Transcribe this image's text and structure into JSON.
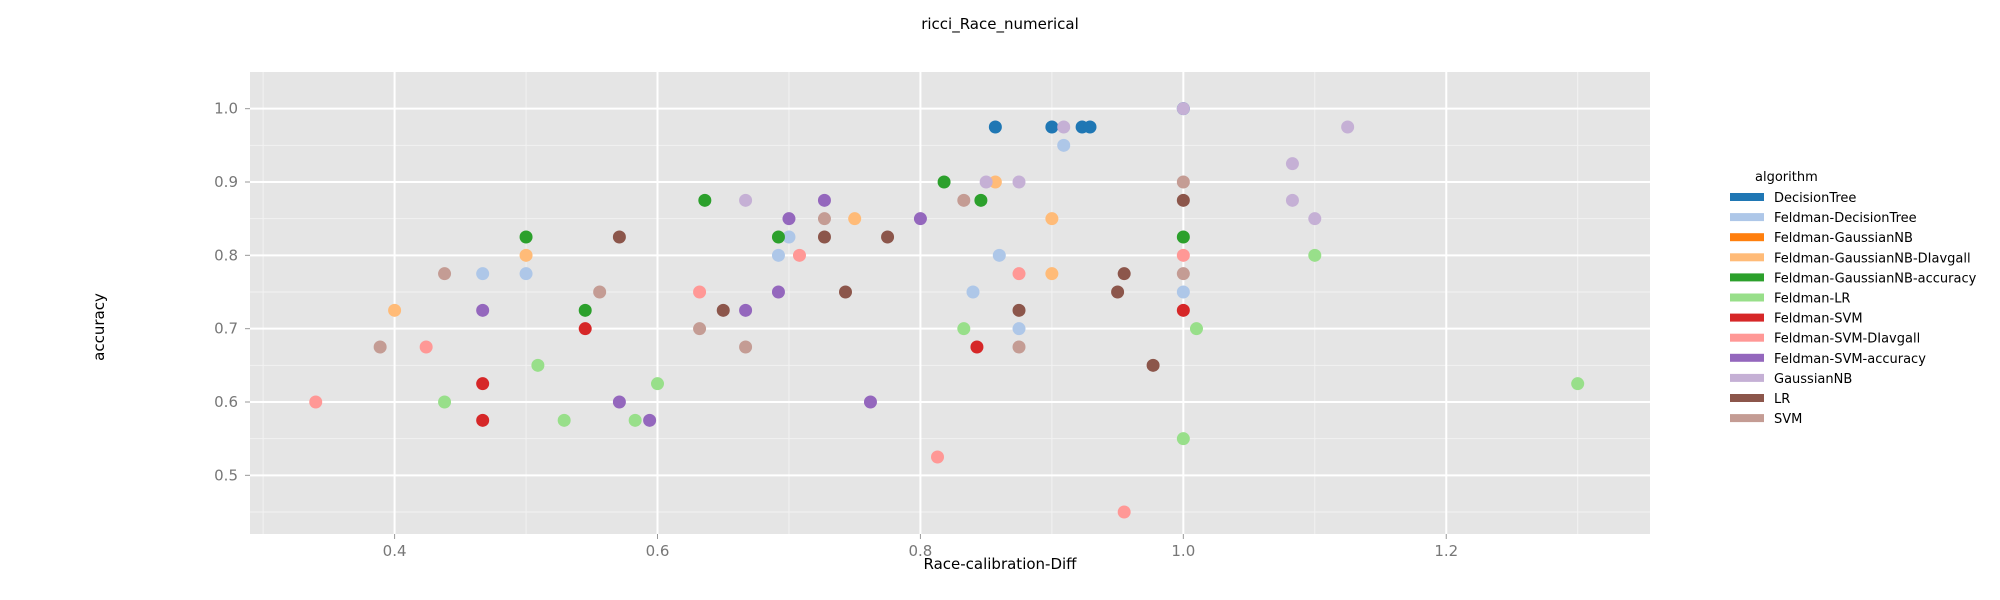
{
  "chart_data": {
    "type": "scatter",
    "title": "ricci_Race_numerical",
    "xlabel": "Race-calibration-Diff",
    "ylabel": "accuracy",
    "xlim": [
      0.29,
      1.355
    ],
    "ylim": [
      0.42,
      1.05
    ],
    "xticks": [
      0.4,
      0.6,
      0.8,
      1.0,
      1.2
    ],
    "xtick_labels": [
      "0.4",
      "0.6",
      "0.8",
      "1.0",
      "1.2"
    ],
    "yticks": [
      0.5,
      0.6,
      0.7,
      0.8,
      0.9,
      1.0
    ],
    "ytick_labels": [
      "0.5",
      "0.6",
      "0.7",
      "0.8",
      "0.9",
      "1.0"
    ],
    "grid": true,
    "legend_title": "algorithm",
    "legend_position": "right",
    "series": [
      {
        "name": "DecisionTree",
        "color": "#1f77b4",
        "points": [
          [
            0.857,
            0.975
          ],
          [
            0.9,
            0.975
          ],
          [
            0.923,
            0.975
          ],
          [
            0.929,
            0.975
          ],
          [
            1.0,
            1.0
          ]
        ]
      },
      {
        "name": "Feldman-DecisionTree",
        "color": "#aec7e8",
        "points": [
          [
            0.467,
            0.775
          ],
          [
            0.5,
            0.775
          ],
          [
            0.7,
            0.825
          ],
          [
            0.692,
            0.8
          ],
          [
            0.86,
            0.8
          ],
          [
            0.84,
            0.75
          ],
          [
            0.875,
            0.7
          ],
          [
            0.909,
            0.95
          ],
          [
            1.0,
            0.75
          ]
        ]
      },
      {
        "name": "Feldman-GaussianNB",
        "color": "#ff7f0e",
        "points": []
      },
      {
        "name": "Feldman-GaussianNB-DIavgall",
        "color": "#ffbb78",
        "points": [
          [
            0.4,
            0.725
          ],
          [
            0.5,
            0.8
          ],
          [
            0.75,
            0.85
          ],
          [
            0.857,
            0.9
          ],
          [
            0.9,
            0.85
          ],
          [
            0.9,
            0.775
          ]
        ]
      },
      {
        "name": "Feldman-GaussianNB-accuracy",
        "color": "#2ca02c",
        "points": [
          [
            0.5,
            0.825
          ],
          [
            0.545,
            0.725
          ],
          [
            0.636,
            0.875
          ],
          [
            0.692,
            0.825
          ],
          [
            0.818,
            0.9
          ],
          [
            0.846,
            0.875
          ],
          [
            1.0,
            0.825
          ]
        ]
      },
      {
        "name": "Feldman-LR",
        "color": "#98df8a",
        "points": [
          [
            0.438,
            0.6
          ],
          [
            0.509,
            0.65
          ],
          [
            0.529,
            0.575
          ],
          [
            0.583,
            0.575
          ],
          [
            0.6,
            0.625
          ],
          [
            0.833,
            0.7
          ],
          [
            1.0,
            0.55
          ],
          [
            1.01,
            0.7
          ],
          [
            1.1,
            0.8
          ],
          [
            1.3,
            0.625
          ]
        ]
      },
      {
        "name": "Feldman-SVM",
        "color": "#d62728",
        "points": [
          [
            0.467,
            0.625
          ],
          [
            0.467,
            0.575
          ],
          [
            0.545,
            0.7
          ],
          [
            0.843,
            0.675
          ],
          [
            1.0,
            0.725
          ]
        ]
      },
      {
        "name": "Feldman-SVM-DIavgall",
        "color": "#ff9896",
        "points": [
          [
            0.34,
            0.6
          ],
          [
            0.424,
            0.675
          ],
          [
            0.632,
            0.75
          ],
          [
            0.708,
            0.8
          ],
          [
            0.813,
            0.525
          ],
          [
            0.875,
            0.775
          ],
          [
            0.955,
            0.45
          ],
          [
            1.0,
            0.8
          ]
        ]
      },
      {
        "name": "Feldman-SVM-accuracy",
        "color": "#9467bd",
        "points": [
          [
            0.467,
            0.725
          ],
          [
            0.571,
            0.6
          ],
          [
            0.594,
            0.575
          ],
          [
            0.667,
            0.725
          ],
          [
            0.692,
            0.75
          ],
          [
            0.7,
            0.85
          ],
          [
            0.727,
            0.875
          ],
          [
            0.762,
            0.6
          ],
          [
            0.8,
            0.85
          ]
        ]
      },
      {
        "name": "GaussianNB",
        "color": "#c5b0d5",
        "points": [
          [
            0.667,
            0.875
          ],
          [
            0.85,
            0.9
          ],
          [
            0.875,
            0.9
          ],
          [
            0.909,
            0.975
          ],
          [
            1.0,
            1.0
          ],
          [
            1.083,
            0.925
          ],
          [
            1.083,
            0.875
          ],
          [
            1.1,
            0.85
          ],
          [
            1.125,
            0.975
          ]
        ]
      },
      {
        "name": "LR",
        "color": "#8c564b",
        "points": [
          [
            0.571,
            0.825
          ],
          [
            0.65,
            0.725
          ],
          [
            0.727,
            0.825
          ],
          [
            0.743,
            0.75
          ],
          [
            0.775,
            0.825
          ],
          [
            0.875,
            0.725
          ],
          [
            0.95,
            0.75
          ],
          [
            0.955,
            0.775
          ],
          [
            0.977,
            0.65
          ],
          [
            1.0,
            0.875
          ]
        ]
      },
      {
        "name": "SVM",
        "color": "#c49c94",
        "points": [
          [
            0.389,
            0.675
          ],
          [
            0.438,
            0.775
          ],
          [
            0.556,
            0.75
          ],
          [
            0.632,
            0.7
          ],
          [
            0.667,
            0.675
          ],
          [
            0.727,
            0.85
          ],
          [
            0.833,
            0.875
          ],
          [
            0.875,
            0.675
          ],
          [
            1.0,
            0.9
          ],
          [
            1.0,
            0.775
          ]
        ]
      }
    ]
  }
}
